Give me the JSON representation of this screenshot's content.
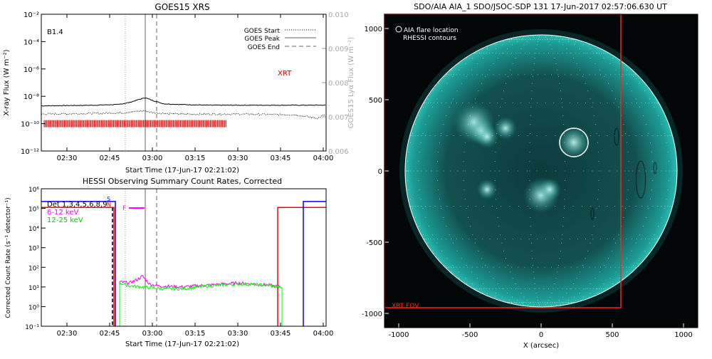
{
  "chart_data": [
    {
      "type": "line",
      "title": "GOES15 XRS",
      "xlabel": "Start Time (17-Jun-17 02:21:02)",
      "ylabel": "X-ray Flux (W m⁻²)",
      "ylabel_right": "GOES15 Lyα Flux (W m⁻²)",
      "class_label": "B1.4",
      "xrt_label": "XRT",
      "x_ticks": [
        "02:30",
        "02:45",
        "03:00",
        "03:15",
        "03:30",
        "03:45",
        "04:00"
      ],
      "x_tick_minutes": [
        30,
        45,
        60,
        75,
        90,
        105,
        120
      ],
      "x_range_minutes": [
        21,
        121
      ],
      "y_log_range": [
        -12,
        -2
      ],
      "y_ticks": [
        "10⁻²",
        "10⁻⁴",
        "10⁻⁶",
        "10⁻⁸",
        "10⁻¹⁰",
        "10⁻¹²"
      ],
      "y_tick_exponents": [
        -2,
        -4,
        -6,
        -8,
        -10,
        -12
      ],
      "y_right_ticks": [
        "0.010",
        "0.009",
        "0.008",
        "0.007",
        "0.006"
      ],
      "y_right_values": [
        0.01,
        0.009,
        0.008,
        0.007,
        0.006
      ],
      "legend": [
        {
          "label": "GOES Start",
          "style": "dotted"
        },
        {
          "label": "GOES Peak",
          "style": "solid"
        },
        {
          "label": "GOES End",
          "style": "dashed"
        }
      ],
      "goes_start_minute": 50.5,
      "goes_peak_minute": 57.5,
      "goes_end_minute": 61.5,
      "series": [
        {
          "color": "#000000",
          "style": "solid",
          "x": [
            21,
            40,
            48,
            52,
            55,
            57.5,
            60,
            64,
            70,
            80,
            100,
            121
          ],
          "log_y": [
            -8.7,
            -8.65,
            -8.6,
            -8.45,
            -8.25,
            -8.1,
            -8.3,
            -8.55,
            -8.6,
            -8.65,
            -8.65,
            -8.65
          ]
        },
        {
          "color": "#000000",
          "style": "dotted",
          "x": [
            21,
            40,
            50,
            57,
            60,
            70,
            90,
            110,
            118,
            121
          ],
          "log_y": [
            -9.3,
            -9.25,
            -9.2,
            -9.05,
            -9.2,
            -9.3,
            -9.3,
            -9.35,
            -9.6,
            -9.3
          ]
        }
      ],
      "xrt_obs_range_minutes": [
        22,
        86
      ]
    },
    {
      "type": "line",
      "title": "HESSI Observing Summary Count Rates, Corrected",
      "xlabel": "Start Time (17-Jun-17 02:21:02)",
      "ylabel": "Corrected Count Rate (s⁻¹ detector⁻¹)",
      "x_ticks": [
        "02:30",
        "02:45",
        "03:00",
        "03:15",
        "03:30",
        "03:45",
        "04:00"
      ],
      "x_tick_minutes": [
        30,
        45,
        60,
        75,
        90,
        105,
        120
      ],
      "x_range_minutes": [
        21,
        121
      ],
      "y_log_range": [
        -1,
        6
      ],
      "y_ticks": [
        "10⁶",
        "10⁵",
        "10⁴",
        "10³",
        "10²",
        "10¹",
        "10⁰",
        "10⁻¹"
      ],
      "y_tick_exponents": [
        6,
        5,
        4,
        3,
        2,
        1,
        0,
        -1
      ],
      "legend": [
        {
          "label": "Det 1,3,4,5,6,8,9",
          "color": "#000000"
        },
        {
          "label": "6-12 keV",
          "color": "#ff00ff"
        },
        {
          "label": "12-25 keV",
          "color": "#00ff00"
        }
      ],
      "flags": [
        {
          "label": "S",
          "color": "#0000ff"
        },
        {
          "label": "N",
          "color": "#ff0000"
        },
        {
          "label": "F",
          "color": "#ff00ff"
        }
      ],
      "series": [
        {
          "name": "6-12 keV",
          "color": "#ff00ff",
          "x": [
            48.5,
            52,
            55,
            56.5,
            57.5,
            59,
            62,
            70,
            80,
            90,
            100,
            105.5
          ],
          "log_y": [
            1.25,
            1.2,
            1.4,
            1.55,
            1.4,
            1.15,
            1.05,
            1.0,
            1.1,
            1.2,
            1.1,
            1.0
          ]
        },
        {
          "name": "12-25 keV",
          "color": "#00ff00",
          "x": [
            48.5,
            52,
            56,
            60,
            65,
            70,
            80,
            90,
            100,
            105.5
          ],
          "log_y": [
            1.2,
            1.05,
            1.0,
            0.95,
            0.9,
            0.9,
            1.05,
            1.15,
            1.1,
            0.95
          ]
        }
      ],
      "night_end_minute": 47,
      "night_start_minute": 104,
      "saa_start_minute": 113
    },
    {
      "type": "image",
      "title": "SDO/AIA AIA_1 SDO/JSOC-SDP 131 17-Jun-2017 02:57:06.630 UT",
      "xlabel": "X (arcsec)",
      "x_ticks": [
        "-1000",
        "-500",
        "0",
        "500",
        "1000"
      ],
      "x_tick_values": [
        -1000,
        -500,
        0,
        500,
        1000
      ],
      "y_ticks": [
        "1000",
        "500",
        "0",
        "-500",
        "-1000"
      ],
      "y_tick_values": [
        1000,
        500,
        0,
        -500,
        -1000
      ],
      "range_arcsec": [
        -1100,
        1100
      ],
      "legend": [
        "AIA flare location",
        "RHESSI contours"
      ],
      "xrt_fov_label": "XRT FOV",
      "flare_location_arcsec": [
        230,
        200
      ],
      "xrt_fov_arcsec": {
        "x": [
          -1100,
          560
        ],
        "y": [
          -960,
          1100
        ]
      },
      "colors": {
        "sun": "#1c9a93",
        "background": "#020606",
        "xrt_fov": "#ff2020"
      }
    }
  ]
}
